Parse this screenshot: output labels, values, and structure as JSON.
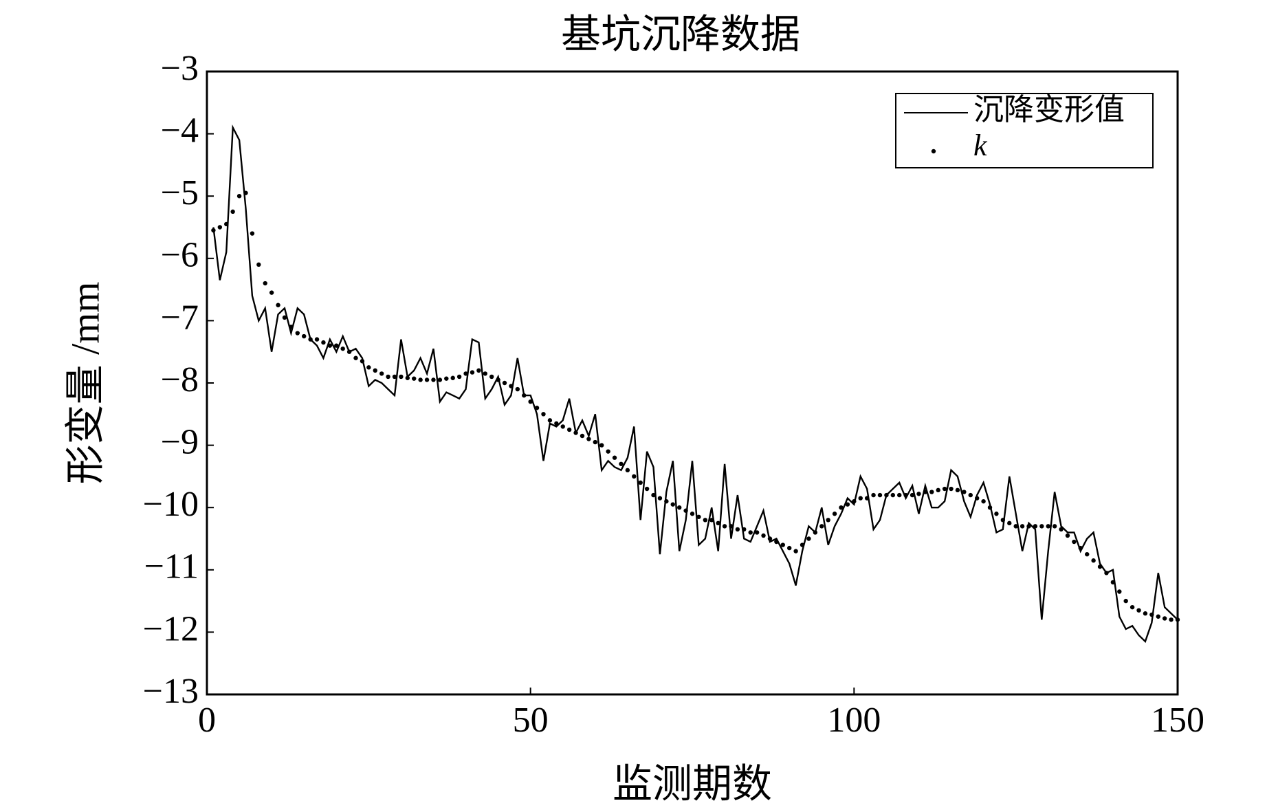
{
  "chart_data": {
    "type": "line",
    "title": "基坑沉降数据",
    "xlabel": "监测期数",
    "ylabel": "形变量 /mm",
    "x": [
      1,
      2,
      3,
      4,
      5,
      6,
      7,
      8,
      9,
      10,
      11,
      12,
      13,
      14,
      15,
      16,
      17,
      18,
      19,
      20,
      21,
      22,
      23,
      24,
      25,
      26,
      27,
      28,
      29,
      30,
      31,
      32,
      33,
      34,
      35,
      36,
      37,
      38,
      39,
      40,
      41,
      42,
      43,
      44,
      45,
      46,
      47,
      48,
      49,
      50,
      51,
      52,
      53,
      54,
      55,
      56,
      57,
      58,
      59,
      60,
      61,
      62,
      63,
      64,
      65,
      66,
      67,
      68,
      69,
      70,
      71,
      72,
      73,
      74,
      75,
      76,
      77,
      78,
      79,
      80,
      81,
      82,
      83,
      84,
      85,
      86,
      87,
      88,
      89,
      90,
      91,
      92,
      93,
      94,
      95,
      96,
      97,
      98,
      99,
      100,
      101,
      102,
      103,
      104,
      105,
      106,
      107,
      108,
      109,
      110,
      111,
      112,
      113,
      114,
      115,
      116,
      117,
      118,
      119,
      120,
      121,
      122,
      123,
      124,
      125,
      126,
      127,
      128,
      129,
      130,
      131,
      132,
      133,
      134,
      135,
      136,
      137,
      138,
      139,
      140,
      141,
      142,
      143,
      144,
      145,
      146,
      147,
      148,
      149,
      150
    ],
    "series": [
      {
        "name": "沉降变形值",
        "color": "#000000",
        "style": "solid",
        "values": [
          -5.5,
          -6.35,
          -5.9,
          -3.9,
          -4.1,
          -5.2,
          -6.6,
          -7.0,
          -6.8,
          -7.5,
          -6.9,
          -6.8,
          -7.2,
          -6.8,
          -6.9,
          -7.3,
          -7.4,
          -7.6,
          -7.3,
          -7.5,
          -7.25,
          -7.5,
          -7.45,
          -7.6,
          -8.05,
          -7.95,
          -8.0,
          -8.1,
          -8.2,
          -7.3,
          -7.9,
          -7.8,
          -7.6,
          -7.85,
          -7.45,
          -8.3,
          -8.15,
          -8.2,
          -8.25,
          -8.1,
          -7.3,
          -7.35,
          -8.25,
          -8.1,
          -7.9,
          -8.35,
          -8.2,
          -7.6,
          -8.2,
          -8.2,
          -8.5,
          -9.25,
          -8.65,
          -8.7,
          -8.6,
          -8.25,
          -8.8,
          -8.6,
          -8.85,
          -8.5,
          -9.4,
          -9.25,
          -9.35,
          -9.4,
          -9.2,
          -8.7,
          -10.2,
          -9.1,
          -9.35,
          -10.75,
          -9.75,
          -9.25,
          -10.7,
          -10.2,
          -9.25,
          -10.6,
          -10.5,
          -10.0,
          -10.7,
          -9.3,
          -10.5,
          -9.8,
          -10.5,
          -10.55,
          -10.3,
          -10.05,
          -10.55,
          -10.5,
          -10.7,
          -10.9,
          -11.25,
          -10.7,
          -10.3,
          -10.4,
          -10.0,
          -10.6,
          -10.3,
          -10.1,
          -9.85,
          -9.95,
          -9.5,
          -9.7,
          -10.35,
          -10.2,
          -9.8,
          -9.7,
          -9.6,
          -9.85,
          -9.65,
          -10.1,
          -9.65,
          -10.0,
          -10.0,
          -9.9,
          -9.4,
          -9.5,
          -9.9,
          -10.15,
          -9.8,
          -9.6,
          -9.95,
          -10.4,
          -10.35,
          -9.5,
          -10.1,
          -10.7,
          -10.25,
          -10.35,
          -11.8,
          -10.7,
          -9.75,
          -10.3,
          -10.4,
          -10.4,
          -10.7,
          -10.5,
          -10.4,
          -10.9,
          -11.05,
          -11.0,
          -11.75,
          -11.95,
          -11.9,
          -12.05,
          -12.15,
          -11.85,
          -11.05,
          -11.6,
          -11.7,
          -11.8
        ]
      },
      {
        "name": "k",
        "color": "#000000",
        "style": "dotted",
        "values": [
          -5.55,
          -5.5,
          -5.45,
          -5.25,
          -5.0,
          -4.95,
          -5.6,
          -6.1,
          -6.4,
          -6.55,
          -6.75,
          -6.95,
          -7.1,
          -7.2,
          -7.25,
          -7.3,
          -7.3,
          -7.35,
          -7.4,
          -7.4,
          -7.45,
          -7.5,
          -7.6,
          -7.65,
          -7.75,
          -7.8,
          -7.85,
          -7.9,
          -7.9,
          -7.9,
          -7.92,
          -7.93,
          -7.95,
          -7.95,
          -7.95,
          -7.95,
          -7.93,
          -7.92,
          -7.9,
          -7.85,
          -7.83,
          -7.8,
          -7.85,
          -7.9,
          -7.95,
          -8.0,
          -8.05,
          -8.1,
          -8.2,
          -8.3,
          -8.4,
          -8.5,
          -8.6,
          -8.65,
          -8.7,
          -8.75,
          -8.8,
          -8.85,
          -8.9,
          -8.95,
          -9.0,
          -9.1,
          -9.2,
          -9.3,
          -9.4,
          -9.5,
          -9.6,
          -9.7,
          -9.8,
          -9.85,
          -9.9,
          -9.95,
          -10.0,
          -10.05,
          -10.1,
          -10.15,
          -10.2,
          -10.2,
          -10.25,
          -10.3,
          -10.3,
          -10.35,
          -10.35,
          -10.4,
          -10.4,
          -10.45,
          -10.5,
          -10.55,
          -10.6,
          -10.65,
          -10.7,
          -10.6,
          -10.5,
          -10.4,
          -10.3,
          -10.2,
          -10.1,
          -10.0,
          -9.95,
          -9.9,
          -9.85,
          -9.85,
          -9.8,
          -9.8,
          -9.8,
          -9.8,
          -9.8,
          -9.8,
          -9.8,
          -9.78,
          -9.75,
          -9.75,
          -9.72,
          -9.7,
          -9.7,
          -9.72,
          -9.75,
          -9.8,
          -9.85,
          -9.9,
          -10.0,
          -10.1,
          -10.2,
          -10.25,
          -10.3,
          -10.3,
          -10.3,
          -10.3,
          -10.3,
          -10.3,
          -10.3,
          -10.35,
          -10.45,
          -10.55,
          -10.65,
          -10.75,
          -10.85,
          -10.95,
          -11.05,
          -11.2,
          -11.35,
          -11.5,
          -11.6,
          -11.65,
          -11.7,
          -11.72,
          -11.75,
          -11.78,
          -11.8,
          -11.8
        ]
      }
    ],
    "xlim": [
      0,
      150
    ],
    "xticks": [
      0,
      50,
      100,
      150
    ],
    "ylim": [
      -13,
      -3
    ],
    "yticks": [
      {
        "value": -3,
        "label": "−3"
      },
      {
        "value": -4,
        "label": "−4"
      },
      {
        "value": -5,
        "label": "−5"
      },
      {
        "value": -6,
        "label": "−6"
      },
      {
        "value": -7,
        "label": "−7"
      },
      {
        "value": -8,
        "label": "−8"
      },
      {
        "value": -9,
        "label": "−9"
      },
      {
        "value": -10,
        "label": "−10"
      },
      {
        "value": -11,
        "label": "−11"
      },
      {
        "value": -12,
        "label": "−12"
      },
      {
        "value": -13,
        "label": "−13"
      }
    ],
    "legend": "upper right",
    "grid": false
  }
}
